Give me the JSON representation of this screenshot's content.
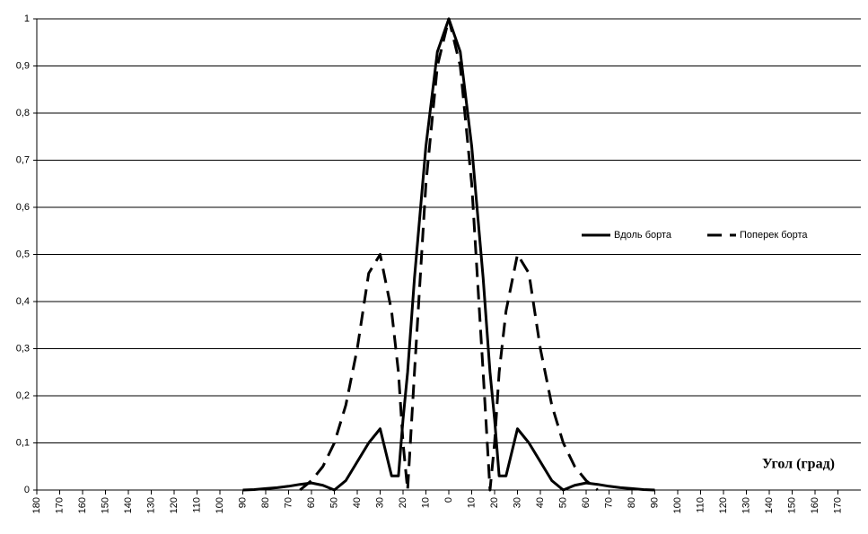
{
  "chart_data": {
    "type": "line",
    "x": [
      -90,
      -85,
      -80,
      -75,
      -70,
      -65,
      -60,
      -55,
      -50,
      -45,
      -40,
      -35,
      -30,
      -25,
      -22,
      -20,
      -18,
      -15,
      -10,
      -5,
      0,
      5,
      10,
      15,
      18,
      20,
      22,
      25,
      30,
      35,
      40,
      45,
      50,
      55,
      60,
      65,
      70,
      75,
      80,
      85,
      90
    ],
    "series": [
      {
        "name": "Вдоль борта",
        "color": "#000000",
        "dash": false,
        "values": [
          0,
          0.001,
          0.003,
          0.005,
          0.008,
          0.012,
          0.015,
          0.01,
          0,
          0.02,
          0.06,
          0.1,
          0.13,
          0.03,
          0.03,
          0.15,
          0.25,
          0.45,
          0.73,
          0.93,
          1,
          0.93,
          0.73,
          0.45,
          0.25,
          0.15,
          0.03,
          0.03,
          0.13,
          0.1,
          0.06,
          0.02,
          0,
          0.01,
          0.015,
          0.012,
          0.008,
          0.005,
          0.003,
          0.001,
          0
        ]
      },
      {
        "name": "Поперек борта",
        "color": "#000000",
        "dash": true,
        "values": [
          null,
          null,
          null,
          null,
          null,
          0,
          0.02,
          0.05,
          0.1,
          0.18,
          0.3,
          0.46,
          0.5,
          0.38,
          0.25,
          0.1,
          0,
          0.25,
          0.65,
          0.9,
          1,
          0.9,
          0.65,
          0.25,
          0,
          0.1,
          0.25,
          0.38,
          0.5,
          0.46,
          0.3,
          0.18,
          0.1,
          0.05,
          0.02,
          0,
          null,
          null,
          null,
          null,
          null
        ]
      }
    ],
    "xlim": [
      -180,
      180
    ],
    "xticks": [
      {
        "value": -180,
        "label": "180"
      },
      {
        "value": -170,
        "label": "170"
      },
      {
        "value": -160,
        "label": "160"
      },
      {
        "value": -150,
        "label": "150"
      },
      {
        "value": -140,
        "label": "140"
      },
      {
        "value": -130,
        "label": "130"
      },
      {
        "value": -120,
        "label": "120"
      },
      {
        "value": -110,
        "label": "110"
      },
      {
        "value": -100,
        "label": "100"
      },
      {
        "value": -90,
        "label": "90"
      },
      {
        "value": -80,
        "label": "80"
      },
      {
        "value": -70,
        "label": "70"
      },
      {
        "value": -60,
        "label": "60"
      },
      {
        "value": -50,
        "label": "50"
      },
      {
        "value": -40,
        "label": "40"
      },
      {
        "value": -30,
        "label": "30"
      },
      {
        "value": -20,
        "label": "20"
      },
      {
        "value": -10,
        "label": "10"
      },
      0,
      10,
      20,
      30,
      40,
      50,
      60,
      70,
      80,
      90,
      100,
      110,
      120,
      130,
      140,
      150,
      160,
      170
    ],
    "ylim": [
      0,
      1
    ],
    "yticks": [
      0,
      {
        "value": 0.1,
        "label": "0,1"
      },
      {
        "value": 0.2,
        "label": "0,2"
      },
      {
        "value": 0.3,
        "label": "0,3"
      },
      {
        "value": 0.4,
        "label": "0,4"
      },
      {
        "value": 0.5,
        "label": "0,5"
      },
      {
        "value": 0.6,
        "label": "0,6"
      },
      {
        "value": 0.7,
        "label": "0,7"
      },
      {
        "value": 0.8,
        "label": "0,8"
      },
      {
        "value": 0.9,
        "label": "0,9"
      },
      1
    ],
    "grid": true,
    "legend": "right",
    "x_label": "Угол (град)"
  }
}
